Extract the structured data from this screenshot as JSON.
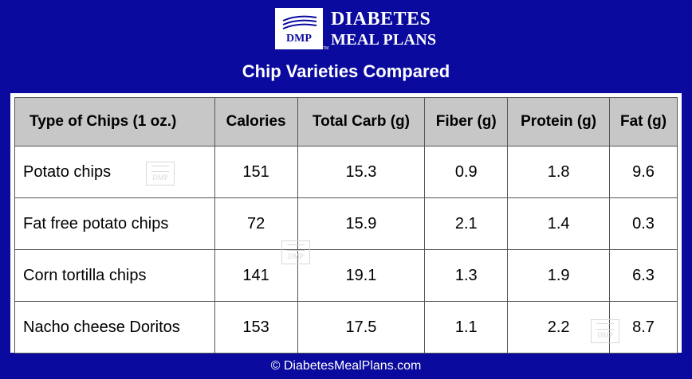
{
  "logo": {
    "badge": "DMP",
    "line1": "DIABETES",
    "line2": "MEAL PLANS",
    "tm": "TM"
  },
  "title": "Chip Varieties Compared",
  "table": {
    "headers": [
      "Type of Chips (1 oz.)",
      "Calories",
      "Total Carb (g)",
      "Fiber (g)",
      "Protein (g)",
      "Fat (g)"
    ],
    "rows": [
      [
        "Potato chips",
        "151",
        "15.3",
        "0.9",
        "1.8",
        "9.6"
      ],
      [
        "Fat free potato chips",
        "72",
        "15.9",
        "2.1",
        "1.4",
        "0.3"
      ],
      [
        "Corn tortilla chips",
        "141",
        "19.1",
        "1.3",
        "1.9",
        "6.3"
      ],
      [
        "Nacho cheese Doritos",
        "153",
        "17.5",
        "1.1",
        "2.2",
        "8.7"
      ]
    ]
  },
  "watermark": "DMP",
  "footer": "© DiabetesMealPlans.com",
  "colors": {
    "background": "#0a0a9e",
    "header_bg": "#c7c7c7"
  }
}
